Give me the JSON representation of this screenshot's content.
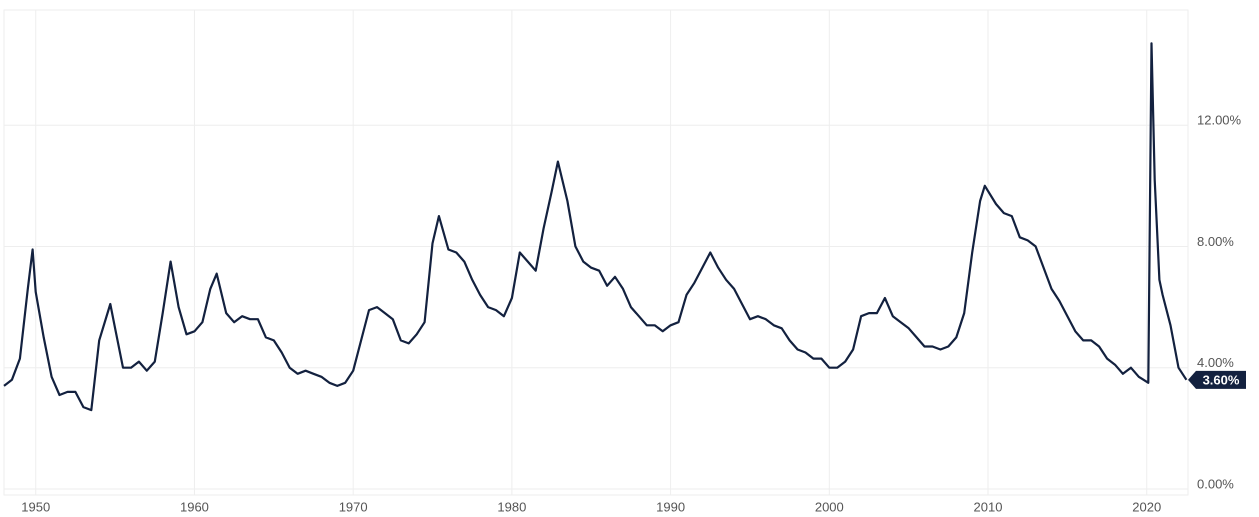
{
  "chart_data": {
    "type": "line",
    "color": "#13213f",
    "grid": true,
    "xlim": [
      1948,
      2022.6
    ],
    "ylim": [
      -0.2,
      15.8
    ],
    "xticks": [
      1950,
      1960,
      1970,
      1980,
      1990,
      2000,
      2010,
      2020
    ],
    "yticks": [
      {
        "value": 0,
        "label": "0.00%"
      },
      {
        "value": 4,
        "label": "4.00%"
      },
      {
        "value": 8,
        "label": "8.00%"
      },
      {
        "value": 12,
        "label": "12.00%"
      }
    ],
    "x": [
      1948.0,
      1948.5,
      1949.0,
      1949.5,
      1949.8,
      1950.0,
      1950.5,
      1951.0,
      1951.5,
      1952.0,
      1952.5,
      1953.0,
      1953.5,
      1954.0,
      1954.7,
      1955.0,
      1955.5,
      1956.0,
      1956.5,
      1957.0,
      1957.5,
      1958.0,
      1958.5,
      1959.0,
      1959.5,
      1960.0,
      1960.5,
      1961.0,
      1961.4,
      1962.0,
      1962.5,
      1963.0,
      1963.5,
      1964.0,
      1964.5,
      1965.0,
      1965.5,
      1966.0,
      1966.5,
      1967.0,
      1967.5,
      1968.0,
      1968.5,
      1969.0,
      1969.5,
      1970.0,
      1970.5,
      1971.0,
      1971.5,
      1972.0,
      1972.5,
      1973.0,
      1973.5,
      1974.0,
      1974.5,
      1975.0,
      1975.4,
      1976.0,
      1976.5,
      1977.0,
      1977.5,
      1978.0,
      1978.5,
      1979.0,
      1979.5,
      1980.0,
      1980.5,
      1981.0,
      1981.5,
      1982.0,
      1982.5,
      1982.9,
      1983.5,
      1984.0,
      1984.5,
      1985.0,
      1985.5,
      1986.0,
      1986.5,
      1987.0,
      1987.5,
      1988.0,
      1988.5,
      1989.0,
      1989.5,
      1990.0,
      1990.5,
      1991.0,
      1991.5,
      1992.0,
      1992.5,
      1993.0,
      1993.5,
      1994.0,
      1994.5,
      1995.0,
      1995.5,
      1996.0,
      1996.5,
      1997.0,
      1997.5,
      1998.0,
      1998.5,
      1999.0,
      1999.5,
      2000.0,
      2000.5,
      2001.0,
      2001.5,
      2002.0,
      2002.5,
      2003.0,
      2003.5,
      2004.0,
      2004.5,
      2005.0,
      2005.5,
      2006.0,
      2006.5,
      2007.0,
      2007.5,
      2008.0,
      2008.5,
      2009.0,
      2009.5,
      2009.8,
      2010.5,
      2011.0,
      2011.5,
      2012.0,
      2012.5,
      2013.0,
      2013.5,
      2014.0,
      2014.5,
      2015.0,
      2015.5,
      2016.0,
      2016.5,
      2017.0,
      2017.5,
      2018.0,
      2018.5,
      2019.0,
      2019.5,
      2020.1,
      2020.3,
      2020.5,
      2020.8,
      2021.0,
      2021.5,
      2022.0,
      2022.5
    ],
    "values": [
      3.4,
      3.6,
      4.3,
      6.6,
      7.9,
      6.5,
      5.0,
      3.7,
      3.1,
      3.2,
      3.2,
      2.7,
      2.6,
      4.9,
      6.1,
      5.3,
      4.0,
      4.0,
      4.2,
      3.9,
      4.2,
      5.8,
      7.5,
      6.0,
      5.1,
      5.2,
      5.5,
      6.6,
      7.1,
      5.8,
      5.5,
      5.7,
      5.6,
      5.6,
      5.0,
      4.9,
      4.5,
      4.0,
      3.8,
      3.9,
      3.8,
      3.7,
      3.5,
      3.4,
      3.5,
      3.9,
      4.9,
      5.9,
      6.0,
      5.8,
      5.6,
      4.9,
      4.8,
      5.1,
      5.5,
      8.1,
      9.0,
      7.9,
      7.8,
      7.5,
      6.9,
      6.4,
      6.0,
      5.9,
      5.7,
      6.3,
      7.8,
      7.5,
      7.2,
      8.6,
      9.8,
      10.8,
      9.5,
      8.0,
      7.5,
      7.3,
      7.2,
      6.7,
      7.0,
      6.6,
      6.0,
      5.7,
      5.4,
      5.4,
      5.2,
      5.4,
      5.5,
      6.4,
      6.8,
      7.3,
      7.8,
      7.3,
      6.9,
      6.6,
      6.1,
      5.6,
      5.7,
      5.6,
      5.4,
      5.3,
      4.9,
      4.6,
      4.5,
      4.3,
      4.3,
      4.0,
      4.0,
      4.2,
      4.6,
      5.7,
      5.8,
      5.8,
      6.3,
      5.7,
      5.5,
      5.3,
      5.0,
      4.7,
      4.7,
      4.6,
      4.7,
      5.0,
      5.8,
      7.8,
      9.5,
      10.0,
      9.4,
      9.1,
      9.0,
      8.3,
      8.2,
      8.0,
      7.3,
      6.6,
      6.2,
      5.7,
      5.2,
      4.9,
      4.9,
      4.7,
      4.3,
      4.1,
      3.8,
      4.0,
      3.7,
      3.5,
      14.7,
      10.2,
      6.9,
      6.4,
      5.4,
      4.0,
      3.6
    ],
    "value_labels": [
      null,
      null,
      null,
      null,
      null,
      null,
      null,
      null,
      null,
      null,
      null,
      null,
      null,
      null,
      null,
      null,
      null,
      null,
      null,
      null,
      null,
      null,
      null,
      null,
      null,
      null,
      null,
      null,
      null,
      null,
      null,
      null,
      null,
      null,
      null,
      null,
      null,
      null,
      null,
      null,
      null,
      null,
      null,
      null,
      null,
      null,
      null,
      null,
      null,
      null,
      null,
      null,
      null,
      null,
      null,
      null,
      null,
      null,
      null,
      null,
      null,
      null,
      null,
      null,
      null,
      null,
      null,
      null,
      null,
      null,
      null,
      null,
      null,
      null,
      null,
      null,
      null,
      null,
      null,
      null,
      null,
      null,
      null,
      null,
      null,
      null,
      null,
      null,
      null,
      null,
      null,
      null,
      null,
      null,
      null,
      null,
      null,
      null,
      null,
      null,
      null,
      null,
      null,
      null,
      null,
      null,
      null,
      null,
      null,
      null,
      null,
      null,
      null,
      null,
      null,
      null,
      null,
      null,
      null,
      null,
      null,
      null,
      null,
      null,
      null,
      null,
      null,
      null,
      null,
      null,
      null,
      null,
      null,
      null,
      null,
      null,
      null,
      null,
      null,
      null,
      null,
      null,
      null,
      null,
      null,
      null,
      null,
      null,
      null,
      null,
      null,
      null,
      "3.60%"
    ]
  }
}
